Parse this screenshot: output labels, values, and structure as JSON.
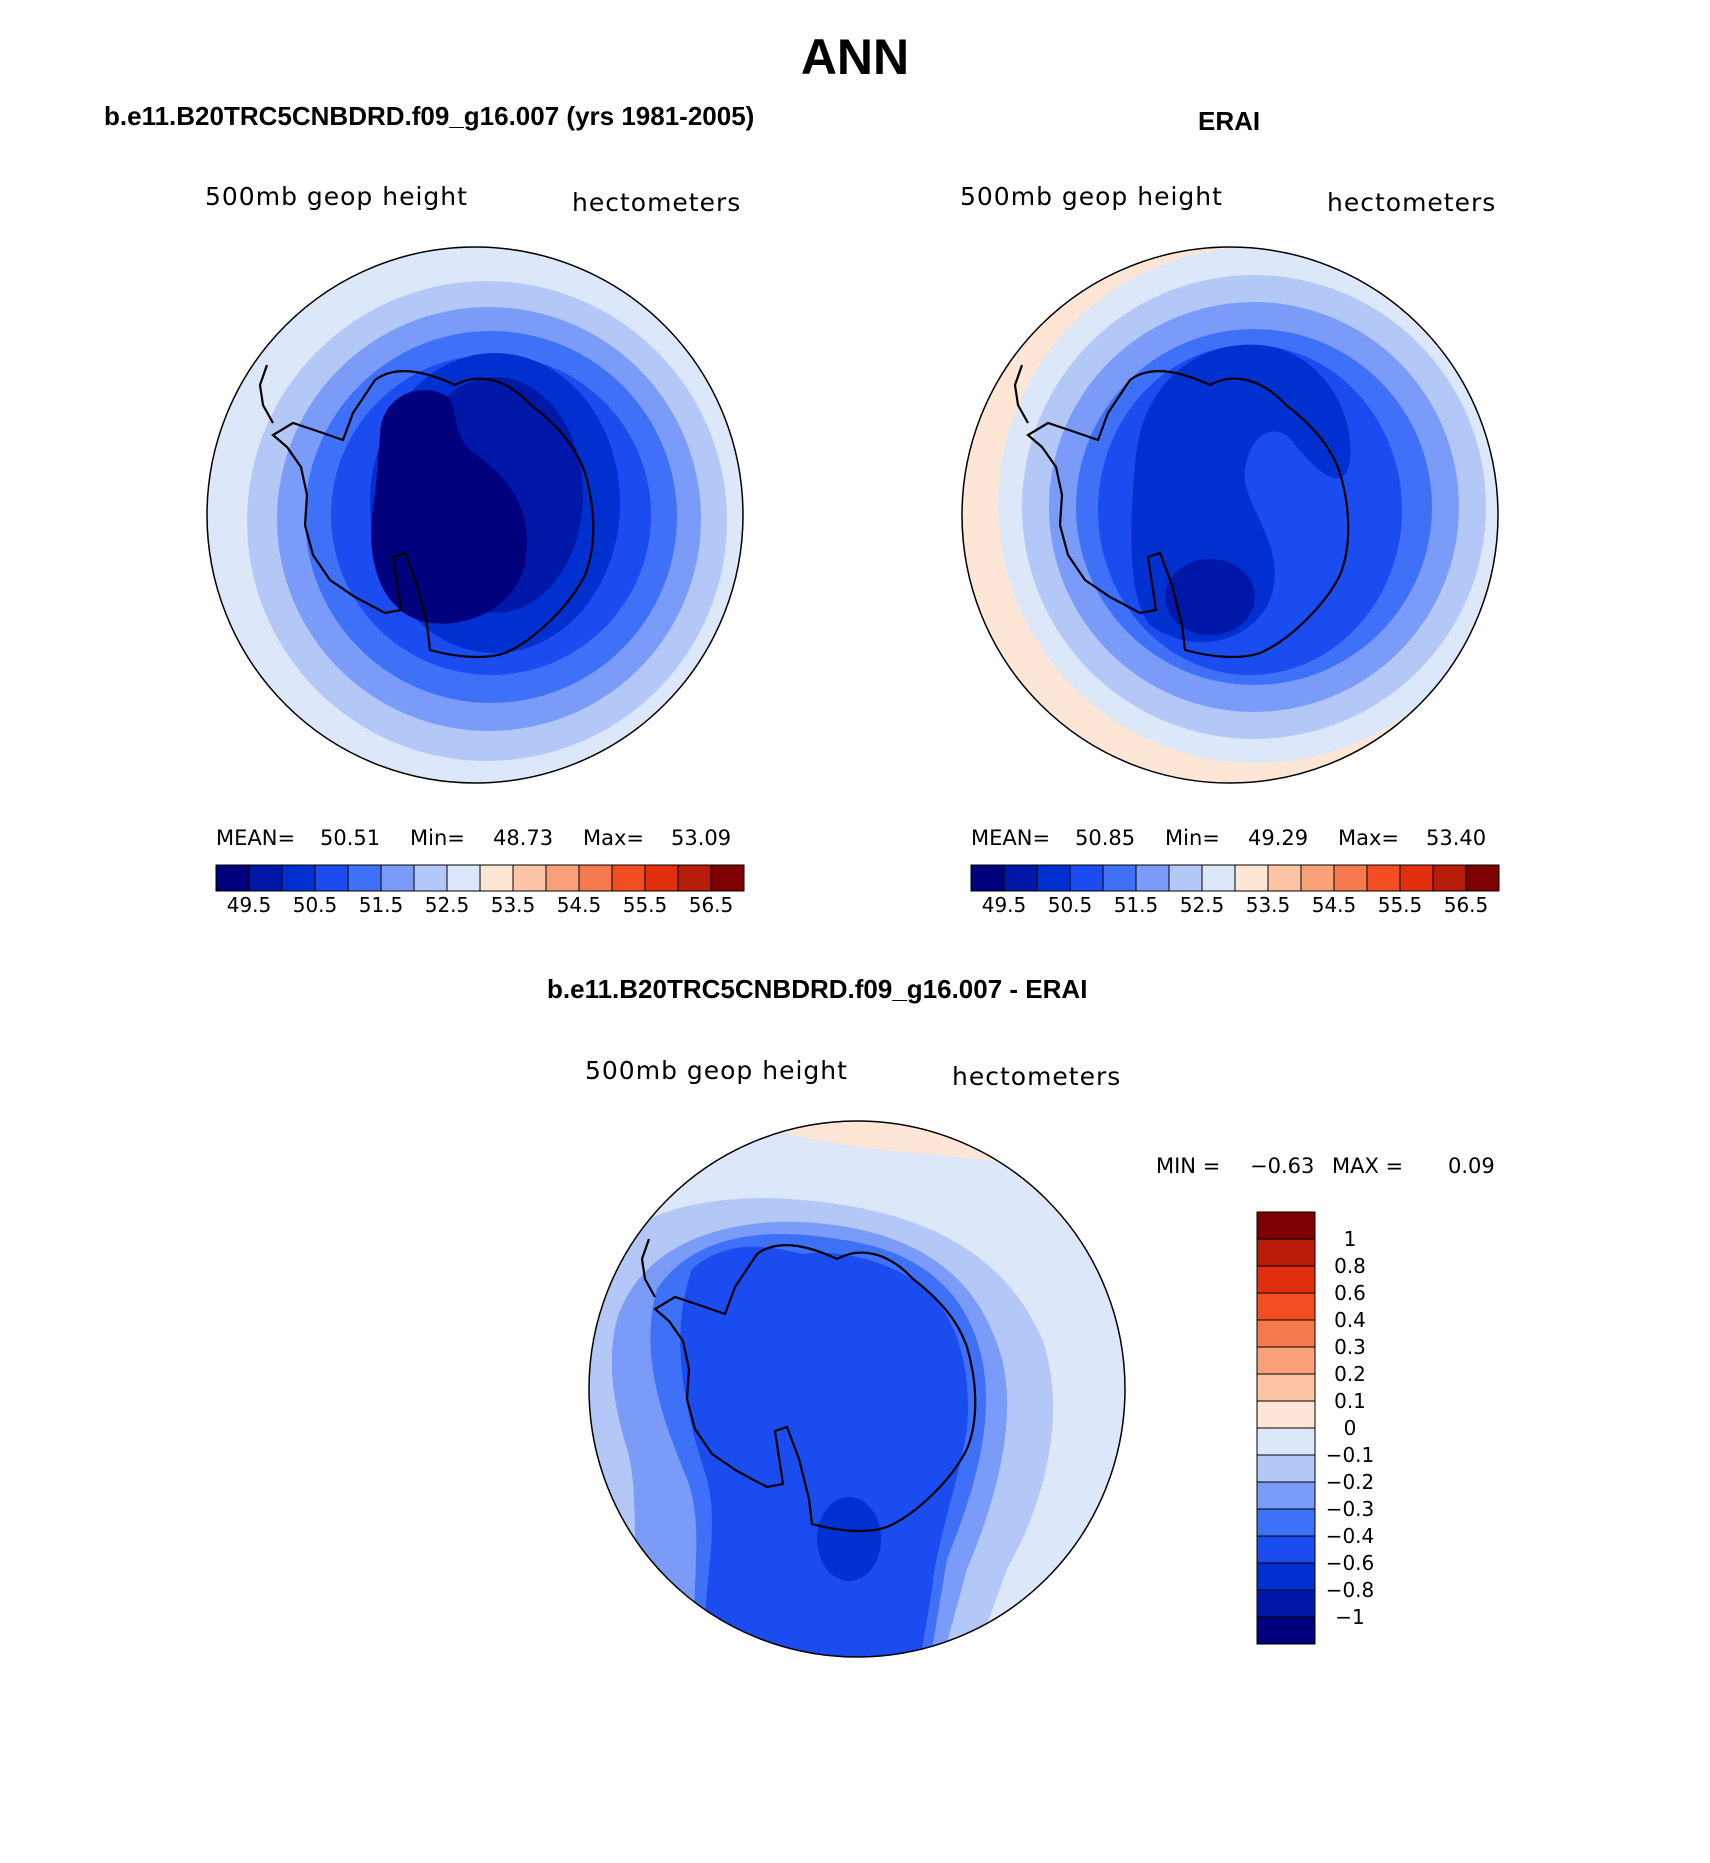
{
  "figure_title": "ANN",
  "panels": [
    {
      "id": "model",
      "title": "b.e11.B20TRC5CNBDRD.f09_g16.007 (yrs 1981-2005)",
      "variable": "500mb geop height",
      "units": "hectometers",
      "stats": {
        "mean_label": "MEAN=",
        "mean": "50.51",
        "min_label": "Min=",
        "min": "48.73",
        "max_label": "Max=",
        "max": "53.09"
      }
    },
    {
      "id": "obs",
      "title": "ERAI",
      "variable": "500mb geop height",
      "units": "hectometers",
      "stats": {
        "mean_label": "MEAN=",
        "mean": "50.85",
        "min_label": "Min=",
        "min": "49.29",
        "max_label": "Max=",
        "max": "53.40"
      }
    },
    {
      "id": "diff",
      "title": "b.e11.B20TRC5CNBDRD.f09_g16.007 - ERAI",
      "variable": "500mb geop height",
      "units": "hectometers",
      "stats": {
        "min_label": "MIN =",
        "min": "−0.63",
        "max_label": "MAX =",
        "max": "0.09"
      }
    }
  ],
  "colorbar_abs": {
    "colors": [
      "#00007f",
      "#0018a8",
      "#0030d0",
      "#1a4cf0",
      "#3f70f8",
      "#7a9cf8",
      "#b4c8f8",
      "#dce8fa",
      "#fde6d6",
      "#fcc4a4",
      "#f9a27a",
      "#f77a4e",
      "#f24e22",
      "#e2300e",
      "#b81c08",
      "#7f0000"
    ],
    "labels": [
      "49.5",
      "50.5",
      "51.5",
      "52.5",
      "53.5",
      "54.5",
      "55.5",
      "56.5"
    ]
  },
  "colorbar_diff": {
    "colors": [
      "#00007f",
      "#0018a8",
      "#0030d0",
      "#1a4cf0",
      "#3f70f8",
      "#7a9cf8",
      "#b4c8f8",
      "#dce8fa",
      "#fde6d6",
      "#fcc4a4",
      "#f9a27a",
      "#f77a4e",
      "#f24e22",
      "#e2300e",
      "#b81c08",
      "#7f0000"
    ],
    "labels": [
      "1",
      "0.8",
      "0.6",
      "0.4",
      "0.3",
      "0.2",
      "0.1",
      "0",
      "−0.1",
      "−0.2",
      "−0.3",
      "−0.4",
      "−0.6",
      "−0.8",
      "−1"
    ]
  }
}
